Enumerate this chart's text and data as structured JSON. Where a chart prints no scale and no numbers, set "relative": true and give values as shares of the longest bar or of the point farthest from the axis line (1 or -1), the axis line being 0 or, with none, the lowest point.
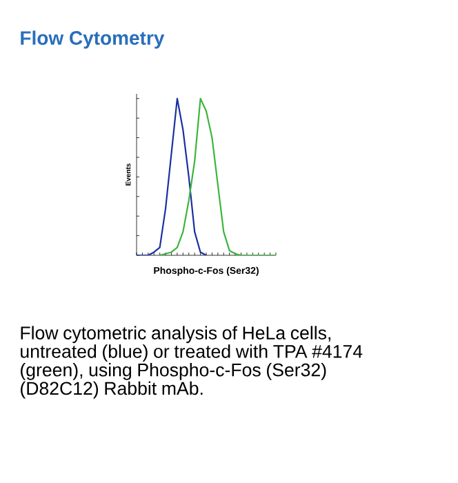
{
  "chart_data": {
    "type": "line",
    "title": "Flow Cytometry",
    "xlabel": "Phospho-c-Fos (Ser32)",
    "ylabel": "Events",
    "relative": true,
    "grid": false,
    "marker": "none",
    "line_style": "solid",
    "categories": [
      null,
      null,
      null,
      null,
      null,
      null,
      null,
      null,
      null,
      null,
      null,
      null,
      null,
      null,
      null,
      null,
      null,
      null,
      null,
      null,
      null,
      null,
      null,
      null,
      null
    ],
    "series": [
      {
        "color": "#1a2fa0",
        "values": [
          0,
          0,
          0,
          0.02,
          0.05,
          0.3,
          0.65,
          1.0,
          0.8,
          0.5,
          0.15,
          0.02,
          0,
          null,
          null,
          null,
          null,
          null,
          null,
          null,
          null,
          null,
          null,
          null,
          null
        ]
      },
      {
        "color": "#3cb43c",
        "values": [
          null,
          null,
          null,
          null,
          0,
          0.01,
          0.02,
          0.05,
          0.15,
          0.35,
          0.6,
          1.0,
          0.92,
          0.75,
          0.45,
          0.15,
          0.03,
          0.01,
          0,
          0,
          0,
          0,
          0,
          0,
          0
        ]
      }
    ],
    "annotations": [
      "Flow cytometric analysis of HeLa cells, untreated (blue) or treated with TPA #4174 (green), using Phospho-c-Fos (Ser32) (D82C12) Rabbit mAb."
    ]
  }
}
